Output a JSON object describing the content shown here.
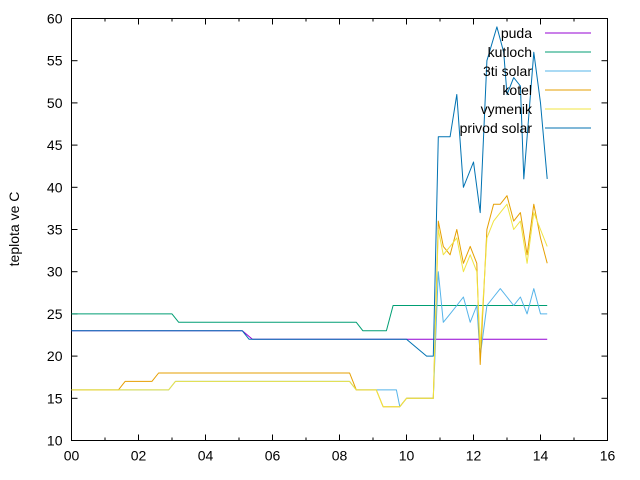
{
  "chart_data": {
    "type": "line",
    "title": "",
    "xlabel": "",
    "ylabel": "teplota ve C",
    "xlim": [
      0,
      16
    ],
    "ylim": [
      10,
      60
    ],
    "x_ticks": [
      0,
      2,
      4,
      6,
      8,
      10,
      12,
      14,
      16
    ],
    "x_tick_labels": [
      "00",
      "02",
      "04",
      "06",
      "08",
      "10",
      "12",
      "14",
      "16"
    ],
    "y_ticks": [
      10,
      15,
      20,
      25,
      30,
      35,
      40,
      45,
      50,
      55,
      60
    ],
    "y_tick_labels": [
      "10",
      "15",
      "20",
      "25",
      "30",
      "35",
      "40",
      "45",
      "50",
      "55",
      "60"
    ],
    "grid": false,
    "legend_position": "top-right",
    "series": [
      {
        "name": "puda",
        "color": "#9400d3",
        "points": [
          [
            0,
            23
          ],
          [
            5.1,
            23
          ],
          [
            5.4,
            22
          ],
          [
            14.2,
            22
          ]
        ]
      },
      {
        "name": "kutloch",
        "color": "#009e73",
        "points": [
          [
            0,
            25
          ],
          [
            3,
            25
          ],
          [
            3.2,
            24
          ],
          [
            8.5,
            24
          ],
          [
            8.7,
            23
          ],
          [
            9.4,
            23
          ],
          [
            9.6,
            26
          ],
          [
            14.2,
            26
          ]
        ]
      },
      {
        "name": "3ti solar",
        "color": "#56b4e9",
        "points": [
          [
            0,
            16
          ],
          [
            2.9,
            16
          ],
          [
            3.1,
            17
          ],
          [
            8.3,
            17
          ],
          [
            8.5,
            16
          ],
          [
            9.7,
            16
          ],
          [
            9.8,
            14
          ],
          [
            10,
            15
          ],
          [
            10.8,
            15
          ],
          [
            10.95,
            30
          ],
          [
            11.1,
            24
          ],
          [
            11.3,
            25
          ],
          [
            11.5,
            26
          ],
          [
            11.7,
            27
          ],
          [
            11.9,
            24
          ],
          [
            12.1,
            26
          ],
          [
            12.2,
            20
          ],
          [
            12.4,
            26
          ],
          [
            12.6,
            27
          ],
          [
            12.8,
            28
          ],
          [
            13,
            27
          ],
          [
            13.2,
            26
          ],
          [
            13.4,
            27
          ],
          [
            13.6,
            25
          ],
          [
            13.8,
            28
          ],
          [
            14,
            25
          ],
          [
            14.2,
            25
          ]
        ]
      },
      {
        "name": "kotel",
        "color": "#e69f00",
        "points": [
          [
            0,
            16
          ],
          [
            1.4,
            16
          ],
          [
            1.6,
            17
          ],
          [
            2.4,
            17
          ],
          [
            2.6,
            18
          ],
          [
            8.3,
            18
          ],
          [
            8.5,
            16
          ],
          [
            9.1,
            16
          ],
          [
            9.3,
            14
          ],
          [
            9.8,
            14
          ],
          [
            10,
            15
          ],
          [
            10.8,
            15
          ],
          [
            10.95,
            36
          ],
          [
            11.1,
            33
          ],
          [
            11.3,
            32
          ],
          [
            11.5,
            35
          ],
          [
            11.7,
            31
          ],
          [
            11.9,
            33
          ],
          [
            12.1,
            31
          ],
          [
            12.2,
            19
          ],
          [
            12.4,
            35
          ],
          [
            12.6,
            38
          ],
          [
            12.8,
            38
          ],
          [
            13,
            39
          ],
          [
            13.2,
            36
          ],
          [
            13.4,
            37
          ],
          [
            13.6,
            32
          ],
          [
            13.8,
            38
          ],
          [
            14,
            34
          ],
          [
            14.2,
            31
          ]
        ]
      },
      {
        "name": "vymenik",
        "color": "#f0e442",
        "points": [
          [
            0,
            16
          ],
          [
            2.9,
            16
          ],
          [
            3.1,
            17
          ],
          [
            8.3,
            17
          ],
          [
            8.5,
            16
          ],
          [
            9.1,
            16
          ],
          [
            9.3,
            14
          ],
          [
            9.8,
            14
          ],
          [
            10,
            15
          ],
          [
            10.8,
            15
          ],
          [
            10.95,
            35
          ],
          [
            11.1,
            32
          ],
          [
            11.3,
            33
          ],
          [
            11.5,
            34
          ],
          [
            11.7,
            30
          ],
          [
            11.9,
            32
          ],
          [
            12.1,
            30
          ],
          [
            12.2,
            21
          ],
          [
            12.4,
            34
          ],
          [
            12.6,
            36
          ],
          [
            12.8,
            37
          ],
          [
            13,
            38
          ],
          [
            13.2,
            35
          ],
          [
            13.4,
            36
          ],
          [
            13.6,
            31
          ],
          [
            13.8,
            37
          ],
          [
            14,
            35
          ],
          [
            14.2,
            33
          ]
        ]
      },
      {
        "name": "privod solar",
        "color": "#0072b2",
        "points": [
          [
            0,
            23
          ],
          [
            5.1,
            23
          ],
          [
            5.3,
            22
          ],
          [
            10,
            22
          ],
          [
            10.3,
            21
          ],
          [
            10.6,
            20
          ],
          [
            10.8,
            20
          ],
          [
            10.95,
            46
          ],
          [
            11.3,
            46
          ],
          [
            11.5,
            51
          ],
          [
            11.7,
            40
          ],
          [
            12,
            43
          ],
          [
            12.2,
            37
          ],
          [
            12.4,
            55
          ],
          [
            12.7,
            59
          ],
          [
            12.9,
            56
          ],
          [
            13,
            51
          ],
          [
            13.2,
            53
          ],
          [
            13.4,
            52
          ],
          [
            13.5,
            41
          ],
          [
            13.8,
            56
          ],
          [
            14,
            50
          ],
          [
            14.2,
            41
          ]
        ]
      }
    ]
  }
}
